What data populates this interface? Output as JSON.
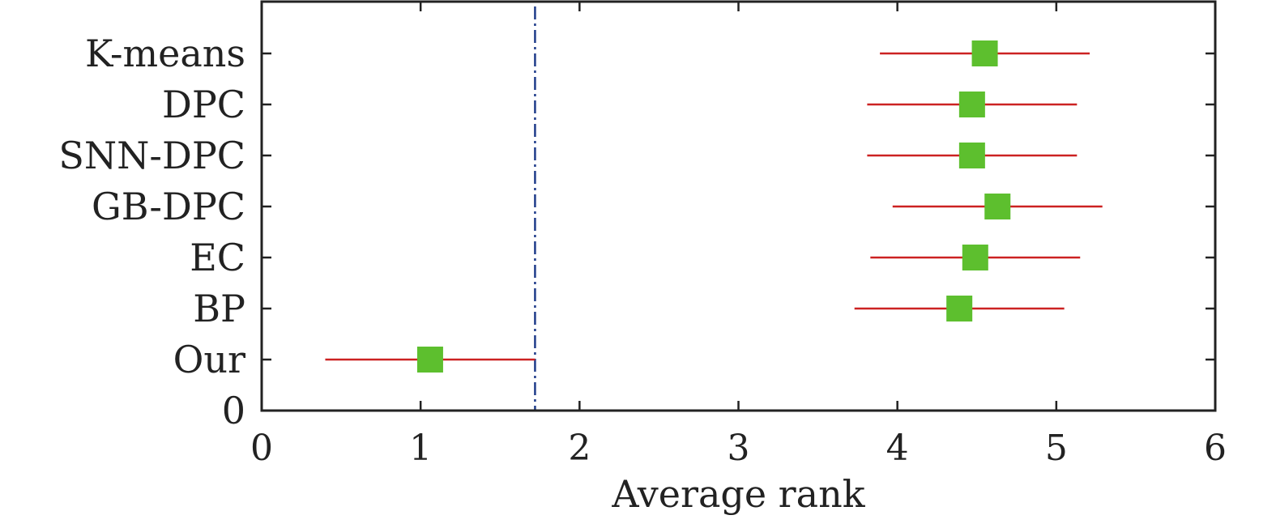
{
  "chart_data": {
    "type": "scatter",
    "subtype": "error-bar dot plot (critical difference)",
    "title": "",
    "xlabel": "Average rank",
    "ylabel": "",
    "xlim": [
      0,
      6
    ],
    "x_ticks": [
      "0",
      "1",
      "2",
      "3",
      "4",
      "5",
      "6"
    ],
    "y_zero_label": "0",
    "grid": false,
    "legend": "none",
    "critical_line_x": 1.72,
    "colors": {
      "marker": "#5dbf2e",
      "error_bar": "#cc2222",
      "critical_line": "#1f3c8a",
      "axis": "#222222"
    },
    "methods": [
      {
        "label": "K-means",
        "rank": 4.55,
        "low": 3.89,
        "high": 5.21
      },
      {
        "label": "DPC",
        "rank": 4.47,
        "low": 3.81,
        "high": 5.13
      },
      {
        "label": "SNN-DPC",
        "rank": 4.47,
        "low": 3.81,
        "high": 5.13
      },
      {
        "label": "GB-DPC",
        "rank": 4.63,
        "low": 3.97,
        "high": 5.29
      },
      {
        "label": "EC",
        "rank": 4.49,
        "low": 3.83,
        "high": 5.15
      },
      {
        "label": "BP",
        "rank": 4.39,
        "low": 3.73,
        "high": 5.05
      },
      {
        "label": "Our",
        "rank": 1.06,
        "low": 0.4,
        "high": 1.72
      }
    ]
  }
}
